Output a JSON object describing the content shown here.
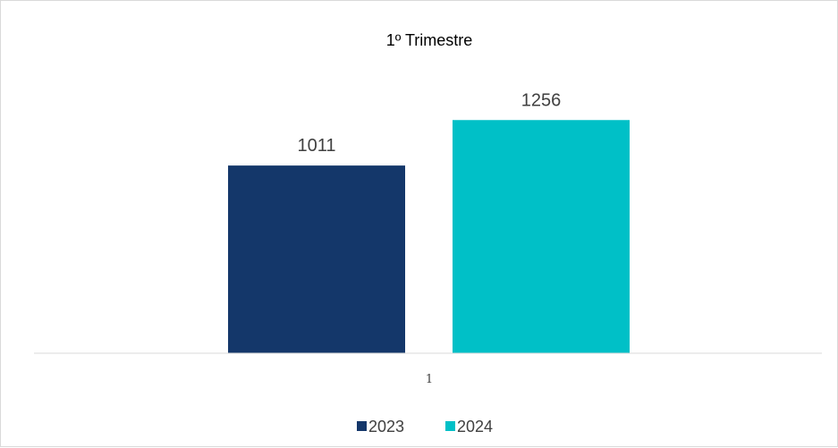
{
  "chart_data": {
    "type": "bar",
    "title": "1º Trimestre",
    "categories": [
      "1"
    ],
    "series": [
      {
        "name": "2023",
        "values": [
          1011
        ],
        "color": "#14376A"
      },
      {
        "name": "2024",
        "values": [
          1256
        ],
        "color": "#00C0C7"
      }
    ],
    "ylim": [
      0,
      1600
    ],
    "grid": false,
    "legend": "bottom",
    "data_labels": true,
    "axis_color": "#d9d9d9"
  }
}
